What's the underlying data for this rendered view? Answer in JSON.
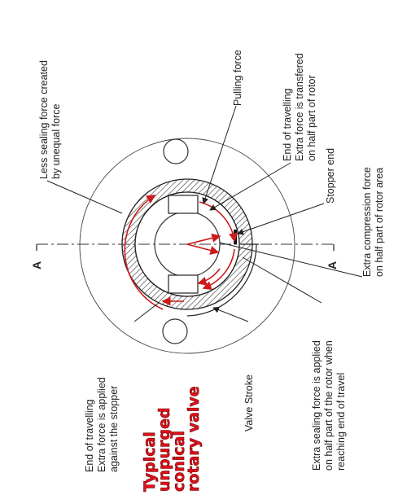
{
  "title_lines": [
    "Typical",
    "unpurged",
    "conical",
    "rotary valve"
  ],
  "section_marker": "A",
  "labels": {
    "less_sealing": [
      "Less sealing force created",
      "by unequal force"
    ],
    "pulling_force": [
      "Pulling force"
    ],
    "end_travel_top": [
      "End of travelling",
      "Extra force is transfered",
      "on half part of rotor"
    ],
    "stopper_end": [
      "Stopper end"
    ],
    "extra_compression": [
      "Extra compression force",
      "on half part of rotor area"
    ],
    "end_travel_bottom": [
      "End of travelling",
      "Extra force is applied",
      "against the stopper"
    ],
    "valve_stroke": [
      "Valve Stroke"
    ],
    "extra_sealing": [
      "Extra sealing force is applied",
      "on half part of the rotor when",
      "reaching end of travel"
    ]
  },
  "colors": {
    "arrow": "#cc1a1a",
    "title": "#e0101a",
    "line": "#222222"
  }
}
